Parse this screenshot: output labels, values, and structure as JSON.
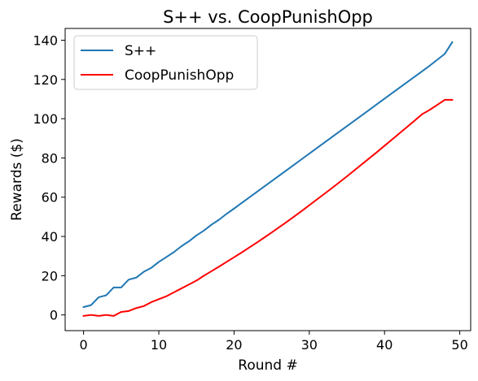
{
  "chart_data": {
    "type": "line",
    "title": "S++ vs. CoopPunishOpp",
    "xlabel": "Round #",
    "ylabel": "Rewards ($)",
    "xlim": [
      -2.45,
      51.45
    ],
    "ylim": [
      -8,
      146
    ],
    "xticks": [
      0,
      10,
      20,
      30,
      40,
      50
    ],
    "yticks": [
      0,
      20,
      40,
      60,
      80,
      100,
      120,
      140
    ],
    "grid": false,
    "legend_position": "top-left",
    "series": [
      {
        "name": "S++",
        "color": "#1f77b4",
        "x": [
          0,
          1,
          2,
          3,
          4,
          5,
          6,
          7,
          8,
          9,
          10,
          11,
          12,
          13,
          14,
          15,
          16,
          17,
          18,
          19,
          20,
          21,
          22,
          23,
          24,
          25,
          26,
          27,
          28,
          29,
          30,
          31,
          32,
          33,
          34,
          35,
          36,
          37,
          38,
          39,
          40,
          41,
          42,
          43,
          44,
          45,
          46,
          47,
          48,
          49
        ],
        "y": [
          4,
          5,
          9,
          10,
          14,
          14,
          18,
          19,
          22,
          24,
          27,
          29.5,
          32,
          35,
          37.5,
          40.5,
          43,
          46,
          48.5,
          51.5,
          54.2,
          57,
          59.8,
          62.6,
          65.4,
          68.2,
          71,
          73.8,
          76.6,
          79.4,
          82.2,
          85,
          87.8,
          90.6,
          93.4,
          96.2,
          99,
          101.8,
          104.6,
          107.4,
          110.2,
          113,
          115.8,
          118.6,
          121.4,
          124.2,
          127,
          130,
          133,
          139
        ]
      },
      {
        "name": "CoopPunishOpp",
        "color": "#ff0000",
        "x": [
          0,
          1,
          2,
          3,
          4,
          5,
          6,
          7,
          8,
          9,
          10,
          11,
          12,
          13,
          14,
          15,
          16,
          17,
          18,
          19,
          20,
          21,
          22,
          23,
          24,
          25,
          26,
          27,
          28,
          29,
          30,
          31,
          32,
          33,
          34,
          35,
          36,
          37,
          38,
          39,
          40,
          41,
          42,
          43,
          44,
          45,
          46,
          47,
          48,
          49
        ],
        "y": [
          -0.5,
          0,
          -0.5,
          0,
          -0.5,
          1.5,
          2,
          3.5,
          4.5,
          6.5,
          8,
          9.5,
          11.5,
          13.5,
          15.5,
          17.5,
          20,
          22.3,
          24.6,
          27,
          29.4,
          31.8,
          34.3,
          36.8,
          39.4,
          42,
          44.7,
          47.4,
          50.2,
          53,
          55.9,
          58.8,
          61.7,
          64.6,
          67.6,
          70.6,
          73.7,
          76.8,
          79.9,
          83,
          86.2,
          89.4,
          92.6,
          95.8,
          99,
          102.3,
          104.5,
          107,
          109.6,
          109.6
        ]
      }
    ]
  }
}
